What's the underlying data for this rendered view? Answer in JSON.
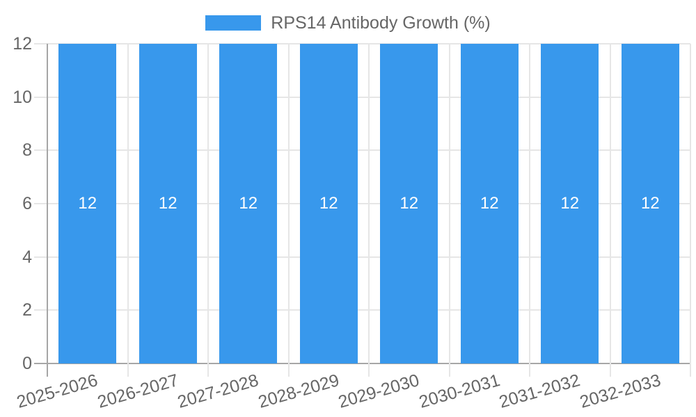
{
  "legend": {
    "label": "RPS14 Antibody Growth (%)"
  },
  "chart_data": {
    "type": "bar",
    "legend_label": "RPS14 Antibody Growth (%)",
    "legend_position": "top",
    "categories": [
      "2025-2026",
      "2026-2027",
      "2027-2028",
      "2028-2029",
      "2029-2030",
      "2030-2031",
      "2031-2032",
      "2032-2033"
    ],
    "values": [
      12,
      12,
      12,
      12,
      12,
      12,
      12,
      12
    ],
    "bar_value_labels": [
      "12",
      "12",
      "12",
      "12",
      "12",
      "12",
      "12",
      "12"
    ],
    "xlabel": "",
    "ylabel": "",
    "ylim": [
      0,
      12
    ],
    "yticks": [
      0,
      2,
      4,
      6,
      8,
      10,
      12
    ],
    "grid": "horizontal-and-vertical-boundaries",
    "x_label_rotation_deg": -16,
    "colors": {
      "bar": "#3898EC",
      "grid": "#E6E6E6",
      "axis": "#A6A6A6",
      "text": "#666666",
      "value_label": "#FFFFFF",
      "background": "#FFFFFF"
    }
  }
}
